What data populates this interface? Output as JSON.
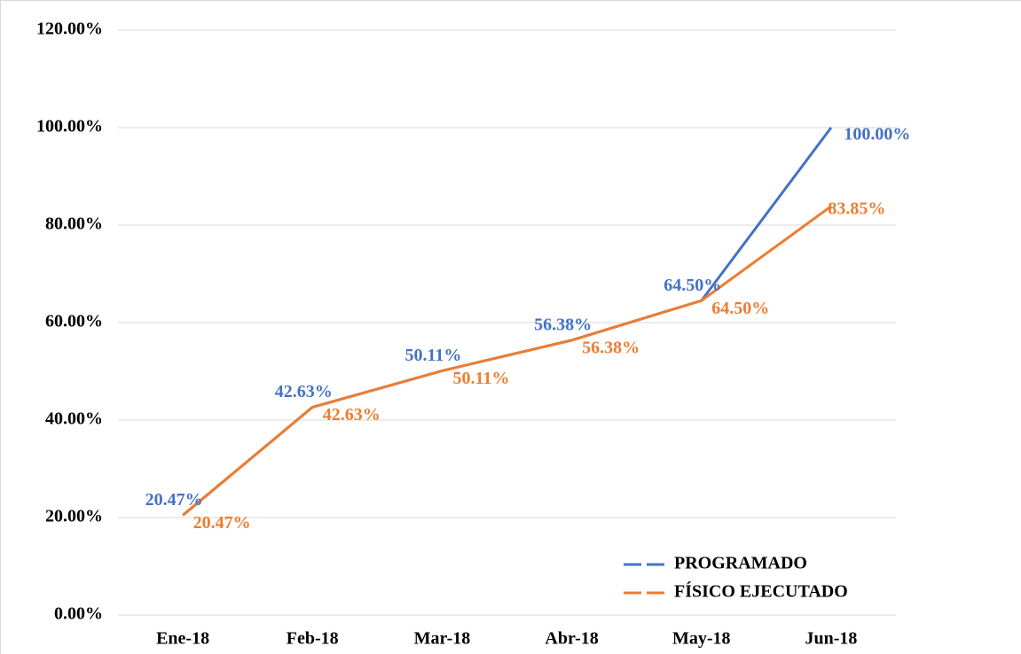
{
  "chart_data": {
    "type": "line",
    "categories": [
      "Ene-18",
      "Feb-18",
      "Mar-18",
      "Abr-18",
      "May-18",
      "Jun-18"
    ],
    "series": [
      {
        "name": "PROGRAMADO",
        "color": "#4472c4",
        "values": [
          20.47,
          42.63,
          50.11,
          56.38,
          64.5,
          100
        ],
        "value_labels": [
          "20.47%",
          "42.63%",
          "50.11%",
          "56.38%",
          "64.50%",
          "100.00%"
        ]
      },
      {
        "name": "FÍSICO EJECUTADO",
        "color": "#ed7d31",
        "values": [
          20.47,
          42.63,
          50.11,
          56.38,
          64.5,
          83.85
        ],
        "value_labels": [
          "20.47%",
          "42.63%",
          "50.11%",
          "56.38%",
          "64.50%",
          "83.85%"
        ]
      }
    ],
    "ylim": [
      0,
      120
    ],
    "yticks": [
      {
        "value": 0,
        "label": "0.00%"
      },
      {
        "value": 20,
        "label": "20.00%"
      },
      {
        "value": 40,
        "label": "40.00%"
      },
      {
        "value": 60,
        "label": "60.00%"
      },
      {
        "value": 80,
        "label": "80.00%"
      },
      {
        "value": 100,
        "label": "100.00%"
      },
      {
        "value": 120,
        "label": "120.00%"
      }
    ],
    "grid": true,
    "legend": "lower right"
  }
}
